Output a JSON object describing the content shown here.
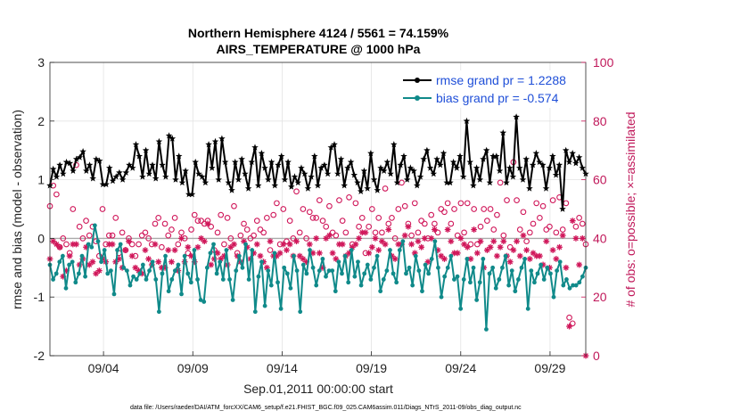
{
  "title_line1": "Northern Hemisphere 4124 / 5561 = 74.159%",
  "title_line2": "AIRS_TEMPERATURE @ 1000 hPa",
  "footer": "data file: /Users/raeder/DAI/ATM_forcXX/CAM6_setup/f.e21.FHIST_BGC.f09_025.CAM6assim.011/Diags_NTrS_2011-09/obs_diag_output.nc",
  "colors": {
    "rmse": "#000000",
    "bias": "#108a8a",
    "obs": "#d0175a",
    "zero": "#aaaaaa"
  },
  "chart_data": {
    "type": "line",
    "title": "Northern Hemisphere 4124 / 5561 = 74.159%",
    "subtitle": "AIRS_TEMPERATURE @ 1000 hPa",
    "xlabel": "Sep.01,2011 00:00:00 start",
    "ylabel": "rmse and bias (model - observation)",
    "ylabel_right": "# of obs: o=possible; ×=assimilated",
    "xlim": [
      1.0,
      31.0
    ],
    "ylim": [
      -2,
      3
    ],
    "ylim_right": [
      0,
      100
    ],
    "xticks": [
      4,
      9,
      14,
      19,
      24,
      29
    ],
    "xtick_labels": [
      "09/04",
      "09/09",
      "09/14",
      "09/19",
      "09/24",
      "09/29"
    ],
    "yticks": [
      -2,
      -1,
      0,
      1,
      2,
      3
    ],
    "yticks_right": [
      0,
      20,
      40,
      60,
      80,
      100
    ],
    "grid": true,
    "legend_position": "top-right",
    "series": [
      {
        "name": "rmse grand pr = 1.2288",
        "axis": "left",
        "marker": "star",
        "values": [
          0.9,
          1.18,
          1.05,
          1.25,
          1.1,
          1.3,
          1.28,
          1.15,
          1.35,
          1.38,
          1.48,
          1.15,
          1.25,
          1.02,
          1.35,
          1.32,
          0.92,
          0.92,
          1.2,
          0.98,
          1.05,
          1.12,
          1.0,
          1.12,
          1.25,
          1.2,
          1.6,
          1.4,
          1.05,
          1.5,
          1.1,
          1.25,
          1.02,
          1.65,
          1.25,
          1.05,
          1.75,
          1.7,
          1.0,
          1.4,
          0.95,
          1.15,
          0.75,
          0.75,
          1.3,
          1.1,
          1.05,
          0.95,
          1.6,
          1.2,
          1.65,
          1.0,
          1.7,
          1.3,
          0.95,
          0.82,
          1.3,
          1.0,
          1.35,
          1.1,
          0.85,
          1.3,
          1.55,
          0.9,
          1.45,
          1.2,
          1.0,
          1.3,
          0.9,
          1.25,
          1.4,
          1.0,
          1.3,
          0.88,
          1.05,
          0.95,
          1.2,
          1.1,
          0.85,
          1.05,
          1.4,
          0.9,
          1.2,
          1.25,
          1.1,
          1.55,
          1.6,
          1.1,
          1.35,
          0.9,
          1.2,
          1.3,
          1.08,
          0.95,
          0.8,
          1.15,
          0.85,
          1.45,
          1.0,
          0.82,
          1.2,
          1.15,
          1.3,
          1.1,
          1.6,
          0.95,
          1.25,
          1.4,
          1.0,
          1.2,
          1.15,
          0.9,
          1.05,
          1.35,
          1.5,
          1.2,
          1.1,
          1.35,
          1.25,
          1.45,
          0.95,
          0.95,
          1.3,
          1.2,
          1.4,
          1.05,
          2.0,
          1.3,
          0.9,
          1.2,
          1.0,
          1.35,
          1.5,
          0.95,
          1.4,
          1.4,
          1.15,
          1.8,
          0.95,
          1.2,
          1.05,
          2.07,
          1.2,
          1.0,
          1.35,
          0.85,
          1.25,
          1.45,
          1.3,
          1.25,
          0.85,
          1.2,
          1.4,
          1.08,
          1.25,
          0.5,
          1.5,
          1.3,
          1.45,
          1.28,
          1.38,
          1.2,
          1.1
        ]
      },
      {
        "name": "bias grand pr = -0.574",
        "axis": "left",
        "marker": "dot",
        "values": [
          -0.45,
          -0.7,
          -0.6,
          -0.4,
          -0.3,
          -0.85,
          -0.45,
          -0.4,
          -0.75,
          -0.6,
          -0.3,
          -0.65,
          -0.1,
          -0.15,
          0.22,
          -0.05,
          -0.4,
          -0.2,
          -0.6,
          -0.55,
          -0.95,
          -0.2,
          -0.1,
          -0.5,
          -0.55,
          -0.8,
          -0.65,
          -0.7,
          -0.6,
          -0.45,
          -0.7,
          -0.55,
          -0.4,
          -0.7,
          -1.25,
          -0.6,
          -0.3,
          -0.9,
          -0.7,
          -0.55,
          -0.45,
          -0.95,
          -0.3,
          -0.6,
          -0.75,
          -0.2,
          -0.7,
          -1.05,
          -1.08,
          -0.5,
          -0.25,
          -0.1,
          -0.6,
          -0.4,
          -0.7,
          -0.2,
          -0.7,
          -1.05,
          -0.55,
          -0.3,
          -0.5,
          -0.1,
          -0.7,
          -0.2,
          -1.25,
          -0.65,
          -0.4,
          -1.15,
          -0.55,
          -0.8,
          -0.25,
          -0.75,
          -1.2,
          -0.5,
          -0.6,
          -0.85,
          -0.3,
          -0.55,
          -1.25,
          -0.45,
          -0.6,
          -0.2,
          -0.5,
          -0.8,
          -0.55,
          -0.35,
          -0.65,
          -0.55,
          -0.55,
          -0.9,
          -0.4,
          -0.6,
          -0.3,
          -0.75,
          -0.2,
          -0.65,
          -0.4,
          -0.8,
          -0.6,
          -0.45,
          -0.7,
          -0.5,
          -0.3,
          -0.9,
          -0.7,
          -0.55,
          -0.2,
          -0.6,
          -0.75,
          -0.2,
          -0.05,
          -0.6,
          -0.5,
          -0.8,
          -0.3,
          -0.55,
          -0.9,
          -0.45,
          -0.6,
          -0.35,
          -0.05,
          -0.5,
          -1.0,
          -0.65,
          -0.5,
          -0.3,
          -0.7,
          -0.65,
          -1.2,
          -0.7,
          -0.35,
          -0.75,
          -0.5,
          -1.05,
          -0.75,
          -0.35,
          -1.55,
          -0.6,
          -0.5,
          -0.85,
          -0.7,
          -0.5,
          -0.3,
          -0.8,
          -0.55,
          -0.9,
          -0.7,
          -0.5,
          -0.35,
          -1.2,
          -0.55,
          -0.75,
          -0.6,
          -0.45,
          -0.7,
          -0.5,
          -0.6,
          -1.0,
          -0.55,
          -0.4,
          -0.8,
          -0.7,
          -0.85,
          -0.8,
          -0.8,
          -0.75,
          -0.65,
          -0.5
        ]
      },
      {
        "name": "possible",
        "axis": "right",
        "marker": "circle",
        "values": [
          51,
          58,
          55,
          37,
          40,
          38,
          35,
          50,
          65,
          44,
          40,
          46,
          41,
          44,
          39,
          34,
          50,
          38,
          41,
          41,
          47,
          35,
          42,
          36,
          40,
          38,
          34,
          38,
          41,
          42,
          40,
          38,
          45,
          47,
          37,
          45,
          41,
          43,
          47,
          38,
          42,
          40,
          35,
          43,
          48,
          46,
          46,
          45,
          46,
          44,
          36,
          42,
          48,
          38,
          47,
          40,
          51,
          35,
          41,
          45,
          43,
          40,
          41,
          46,
          43,
          42,
          47,
          36,
          48,
          52,
          38,
          50,
          39,
          46,
          40,
          56,
          42,
          50,
          40,
          49,
          47,
          47,
          53,
          46,
          44,
          51,
          42,
          41,
          53,
          46,
          42,
          54,
          38,
          52,
          44,
          47,
          35,
          44,
          50,
          42,
          47,
          42,
          57,
          45,
          47,
          40,
          50,
          59,
          51,
          45,
          41,
          52,
          42,
          46,
          45,
          40,
          48,
          45,
          42,
          50,
          49,
          52,
          45,
          50,
          41,
          52,
          42,
          52,
          38,
          50,
          38,
          44,
          50,
          46,
          50,
          43,
          48,
          59,
          41,
          53,
          37,
          66,
          53,
          43,
          49,
          39,
          42,
          45,
          52,
          47,
          51,
          43,
          44,
          53,
          42,
          54,
          43,
          52,
          13,
          11,
          44,
          47,
          45,
          38
        ]
      },
      {
        "name": "assimilated",
        "axis": "right",
        "marker": "asterisk",
        "values": [
          33,
          39,
          38,
          37,
          27,
          29,
          34,
          38,
          38,
          31,
          33,
          37,
          31,
          32,
          28,
          29,
          33,
          32,
          38,
          38,
          32,
          33,
          30,
          36,
          39,
          34,
          30,
          29,
          28,
          36,
          33,
          31,
          38,
          32,
          30,
          30,
          36,
          32,
          36,
          29,
          40,
          32,
          37,
          34,
          32,
          37,
          40,
          39,
          45,
          31,
          33,
          35,
          33,
          34,
          31,
          37,
          38,
          34,
          32,
          39,
          37,
          33,
          35,
          38,
          34,
          32,
          30,
          39,
          34,
          34,
          35,
          38,
          36,
          38,
          34,
          39,
          34,
          33,
          32,
          38,
          35,
          40,
          35,
          30,
          40,
          41,
          35,
          33,
          38,
          38,
          34,
          35,
          37,
          38,
          40,
          42,
          42,
          35,
          37,
          40,
          36,
          39,
          38,
          43,
          34,
          33,
          38,
          38,
          41,
          44,
          38,
          35,
          39,
          37,
          40,
          32,
          40,
          43,
          36,
          34,
          33,
          43,
          39,
          35,
          35,
          40,
          38,
          37,
          33,
          43,
          35,
          39,
          30,
          36,
          37,
          39,
          34,
          37,
          39,
          34,
          32,
          36,
          39,
          34,
          41,
          36,
          33,
          35,
          34,
          34,
          31,
          39,
          30,
          36,
          33,
          37,
          41,
          30,
          10,
          46,
          40,
          31,
          40,
          0
        ]
      }
    ]
  }
}
